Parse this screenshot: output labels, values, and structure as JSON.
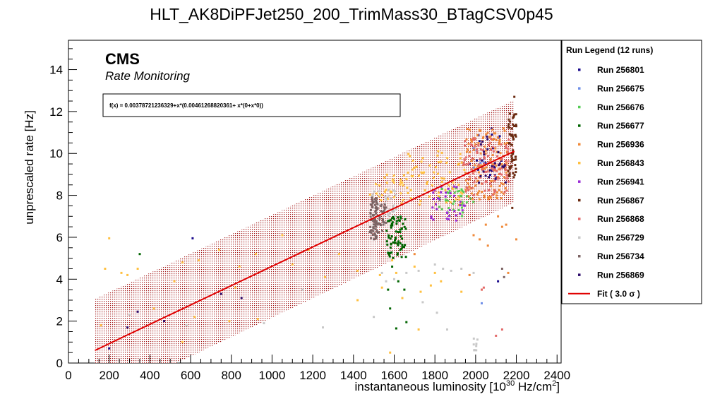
{
  "chart_data": {
    "type": "scatter",
    "title": "HLT_AK8DiPFJet250_200_TrimMass30_BTagCSV0p45",
    "xlabel": "instantaneous luminosity [10",
    "xlabel_exp": "30",
    "xlabel_tail": " Hz/cm",
    "xlabel_sq": "2",
    "xlabel_end": "]",
    "ylabel": "unprescaled rate [Hz]",
    "xlim": [
      0,
      2420
    ],
    "ylim": [
      0,
      15.4
    ],
    "xticks": [
      0,
      200,
      400,
      600,
      800,
      1000,
      1200,
      1400,
      1600,
      1800,
      2000,
      2200,
      2400
    ],
    "yticks": [
      0,
      2,
      4,
      6,
      8,
      10,
      12,
      14
    ],
    "cms_label": "CMS",
    "cms_sub": "Rate Monitoring",
    "fit_formula": "f(x) = 0.00378721236329+x*(0.00461268820361+ x*(0+x*0))",
    "fit": {
      "intercept": 0.00378721236329,
      "slope": 0.00461268820361,
      "x_range": [
        130,
        2190
      ],
      "band_sigma_halfwidth": 2.45,
      "color": "#e00000",
      "band_color": "#a01010"
    },
    "legend_title": "Run Legend (12 runs)",
    "legend_fit_label": "Fit ( 3.0 σ )",
    "series": [
      {
        "name": "Run 256801",
        "color": "#1a0a8c",
        "clusters": [
          [
            1990,
            2130,
            8.3,
            11.2,
            20
          ]
        ],
        "outliers": [
          [
            200,
            0.7
          ],
          [
            610,
            5.95
          ],
          [
            2110,
            3.9
          ],
          [
            1970,
            9.5
          ],
          [
            2080,
            10.9
          ]
        ]
      },
      {
        "name": "Run 256675",
        "color": "#6f8fe8",
        "clusters": [
          [
            1940,
            2060,
            9.3,
            10.3,
            10
          ]
        ],
        "outliers": [
          [
            2030,
            2.85
          ]
        ]
      },
      {
        "name": "Run 256676",
        "color": "#55cc55",
        "clusters": [
          [
            1820,
            1990,
            7.0,
            8.4,
            40
          ]
        ],
        "outliers": []
      },
      {
        "name": "Run 256677",
        "color": "#006400",
        "clusters": [
          [
            1560,
            1660,
            5.0,
            7.0,
            70
          ]
        ],
        "outliers": [
          [
            1580,
            2.6
          ],
          [
            1610,
            1.65
          ],
          [
            1660,
            1.95
          ],
          [
            1570,
            3.5
          ],
          [
            1590,
            4.6
          ],
          [
            1650,
            3.5
          ],
          [
            1620,
            3.9
          ],
          [
            350,
            5.2
          ]
        ]
      },
      {
        "name": "Run 256936",
        "color": "#f08a3a",
        "clusters": [
          [
            1950,
            2160,
            7.8,
            11.2,
            140
          ]
        ],
        "outliers": [
          [
            2110,
            7.0
          ],
          [
            2130,
            6.5
          ],
          [
            1990,
            6.1
          ],
          [
            2020,
            5.9
          ],
          [
            1970,
            4.2
          ],
          [
            2160,
            4.3
          ],
          [
            2200,
            5.9
          ],
          [
            2060,
            5.6
          ],
          [
            2050,
            6.6
          ],
          [
            2150,
            6.6
          ],
          [
            1700,
            5.2
          ]
        ]
      },
      {
        "name": "Run 256843",
        "color": "#ffc040",
        "clusters": [
          [
            1480,
            1650,
            7.6,
            9.0,
            30
          ],
          [
            1660,
            1950,
            7.5,
            10.2,
            70
          ]
        ],
        "outliers": [
          [
            200,
            5.95
          ],
          [
            180,
            4.5
          ],
          [
            260,
            4.3
          ],
          [
            290,
            4.2
          ],
          [
            340,
            4.5
          ],
          [
            420,
            2.6
          ],
          [
            520,
            3.9
          ],
          [
            560,
            4.8
          ],
          [
            640,
            4.9
          ],
          [
            740,
            5.4
          ],
          [
            820,
            3.6
          ],
          [
            840,
            4.6
          ],
          [
            920,
            5.2
          ],
          [
            1050,
            6.1
          ],
          [
            1100,
            4.7
          ],
          [
            1180,
            5.4
          ],
          [
            1260,
            4.1
          ],
          [
            1330,
            5.2
          ],
          [
            1420,
            4.4
          ],
          [
            1540,
            3.6
          ],
          [
            1590,
            4.9
          ],
          [
            1610,
            4.3
          ],
          [
            1700,
            4.6
          ],
          [
            1730,
            3.4
          ],
          [
            1780,
            3.7
          ],
          [
            1800,
            4.3
          ],
          [
            1640,
            3.1
          ],
          [
            1830,
            3.9
          ],
          [
            560,
            1.0
          ],
          [
            620,
            2.2
          ],
          [
            790,
            2.0
          ],
          [
            930,
            2.1
          ],
          [
            1580,
            0.5
          ],
          [
            1720,
            1.6
          ],
          [
            2030,
            3.5
          ],
          [
            1930,
            3.4
          ],
          [
            1530,
            4.2
          ],
          [
            1420,
            3.0
          ],
          [
            160,
            1.8
          ]
        ]
      },
      {
        "name": "Run 256941",
        "color": "#9a2bd6",
        "clusters": [
          [
            1780,
            1950,
            6.8,
            8.6,
            35
          ]
        ],
        "outliers": []
      },
      {
        "name": "Run 256867",
        "color": "#6a2a10",
        "clusters": [
          [
            2160,
            2200,
            8.8,
            12.0,
            60
          ]
        ],
        "outliers": [
          [
            2190,
            12.7
          ],
          [
            2180,
            7.4
          ]
        ]
      },
      {
        "name": "Run 256868",
        "color": "#e36a6a",
        "clusters": [
          [
            1940,
            2170,
            8.0,
            10.8,
            110
          ]
        ],
        "outliers": [
          [
            2100,
            1.3
          ],
          [
            2130,
            1.6
          ],
          [
            2030,
            3.5
          ],
          [
            2040,
            3.6
          ]
        ]
      },
      {
        "name": "Run 256729",
        "color": "#c8c8c8",
        "clusters": [
          [
            1490,
            1620,
            7.0,
            8.3,
            40
          ],
          [
            1990,
            2010,
            0.6,
            1.2,
            8
          ]
        ],
        "outliers": [
          [
            1540,
            4.3
          ],
          [
            1560,
            3.9
          ],
          [
            1600,
            4.0
          ],
          [
            1660,
            4.3
          ],
          [
            1720,
            4.4
          ],
          [
            1800,
            4.7
          ],
          [
            1840,
            4.5
          ],
          [
            1880,
            4.4
          ],
          [
            1930,
            4.5
          ],
          [
            1990,
            4.3
          ],
          [
            1500,
            2.2
          ],
          [
            1740,
            2.9
          ],
          [
            1860,
            1.6
          ],
          [
            1810,
            2.4
          ],
          [
            300,
            2.3
          ],
          [
            580,
            1.8
          ],
          [
            960,
            1.9
          ],
          [
            1150,
            3.5
          ],
          [
            1250,
            1.7
          ]
        ]
      },
      {
        "name": "Run 256734",
        "color": "#7d6464",
        "clusters": [
          [
            1480,
            1520,
            5.9,
            7.9,
            80
          ],
          [
            1525,
            1560,
            6.2,
            7.7,
            25
          ]
        ],
        "outliers": [
          [
            2130,
            4.5
          ],
          [
            2140,
            4.1
          ]
        ]
      },
      {
        "name": "Run 256869",
        "color": "#2c0a6a",
        "clusters": [
          [
            2000,
            2150,
            8.6,
            11.0,
            25
          ]
        ],
        "outliers": [
          [
            470,
            2.0
          ],
          [
            340,
            2.45
          ],
          [
            290,
            1.7
          ],
          [
            750,
            3.3
          ],
          [
            850,
            3.1
          ]
        ]
      }
    ]
  }
}
